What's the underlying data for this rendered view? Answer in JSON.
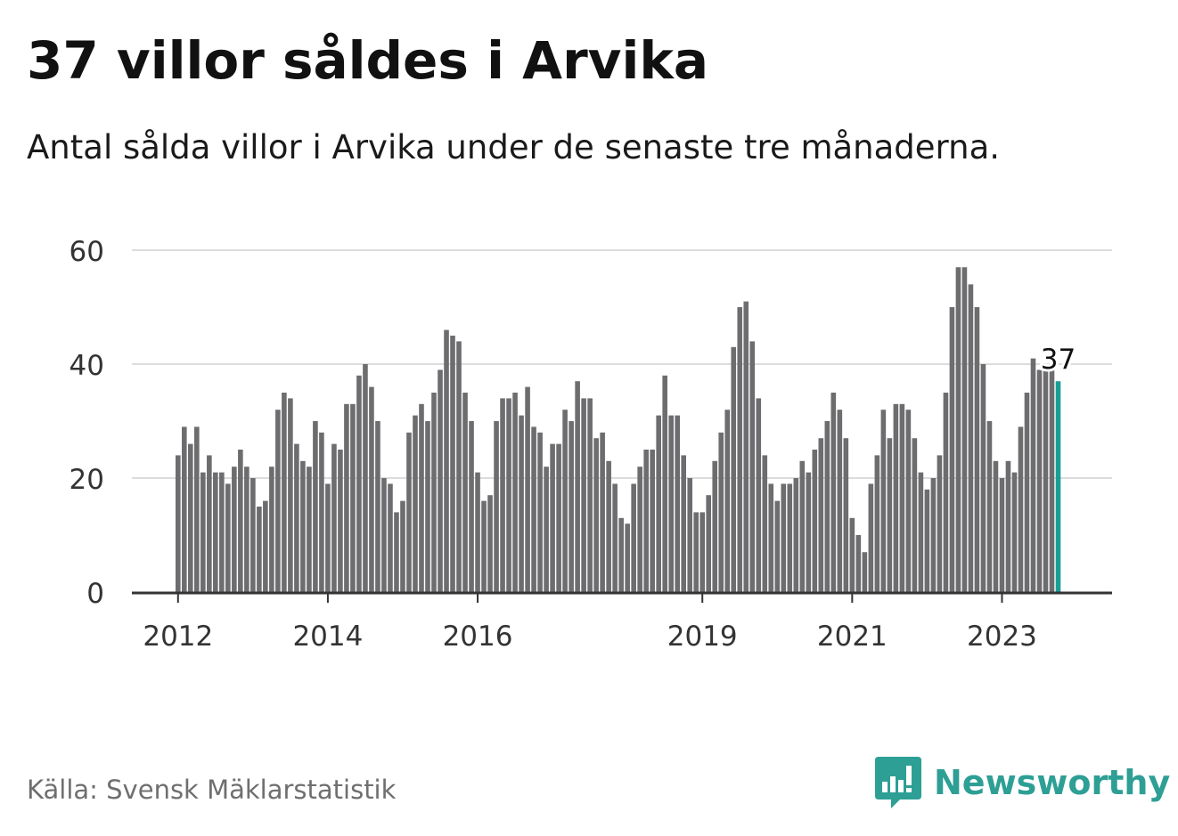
{
  "title": "37 villor såldes i Arvika",
  "subtitle": "Antal sålda villor i Arvika under de senaste tre månaderna.",
  "source": "Källa: Svensk Mäklarstatistik",
  "brand": "Newsworthy",
  "colors": {
    "bar": "#6d6d70",
    "highlight": "#1a9e96",
    "grid": "#dcdcdc",
    "axis": "#333333",
    "brand": "#2d9f95"
  },
  "chart_data": {
    "type": "bar",
    "y_ticks": [
      "0",
      "20",
      "40",
      "60"
    ],
    "ylim": [
      0,
      60
    ],
    "grid": true,
    "x_tick_labels": [
      "2012",
      "2014",
      "2016",
      "2019",
      "2021",
      "2023"
    ],
    "highlight_label": "37",
    "values": [
      24,
      29,
      26,
      29,
      21,
      24,
      21,
      21,
      19,
      22,
      25,
      22,
      20,
      15,
      16,
      22,
      32,
      35,
      34,
      26,
      23,
      22,
      30,
      28,
      19,
      26,
      25,
      33,
      33,
      38,
      40,
      36,
      30,
      20,
      19,
      14,
      16,
      28,
      31,
      33,
      30,
      35,
      39,
      46,
      45,
      44,
      35,
      30,
      21,
      16,
      17,
      30,
      34,
      34,
      35,
      31,
      36,
      29,
      28,
      22,
      26,
      26,
      32,
      30,
      37,
      34,
      34,
      27,
      28,
      23,
      19,
      13,
      12,
      19,
      22,
      25,
      25,
      31,
      38,
      31,
      31,
      24,
      20,
      14,
      14,
      17,
      23,
      28,
      32,
      43,
      50,
      51,
      44,
      34,
      24,
      19,
      16,
      19,
      19,
      20,
      23,
      21,
      25,
      27,
      30,
      35,
      32,
      27,
      13,
      10,
      7,
      19,
      24,
      32,
      27,
      33,
      33,
      32,
      27,
      21,
      18,
      20,
      24,
      35,
      50,
      57,
      57,
      54,
      50,
      40,
      30,
      23,
      20,
      23,
      21,
      29,
      35,
      41,
      39,
      39,
      39,
      37
    ]
  }
}
